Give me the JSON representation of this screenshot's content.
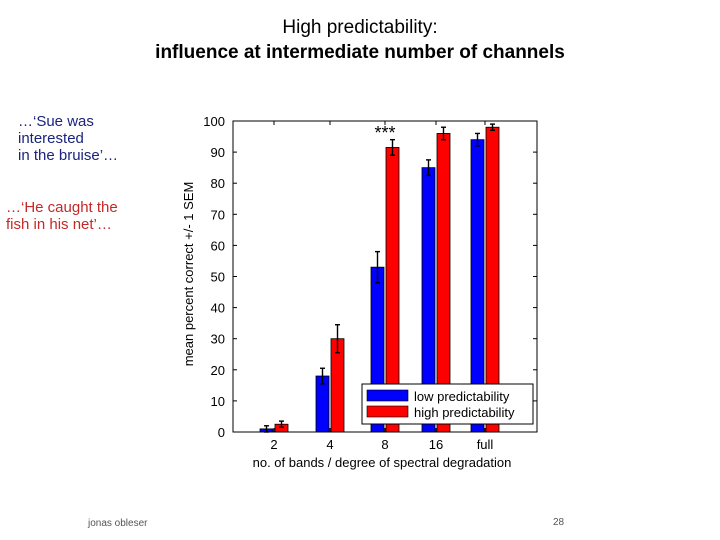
{
  "slide": {
    "title_line1": "High predictability:",
    "title_line2": "influence at intermediate number of channels",
    "quote_low": "…‘Sue was\ninterested\nin the bruise’…",
    "quote_high": "…‘He caught the\nfish in his net’…",
    "author": "jonas obleser",
    "page_number": "28"
  },
  "chart_data": {
    "type": "bar",
    "categories": [
      "2",
      "4",
      "8",
      "16",
      "full"
    ],
    "xlabel": "no. of bands / degree of spectral degradation",
    "ylabel": "mean percent correct +/- 1 SEM",
    "ylim": [
      0,
      100
    ],
    "yticks": [
      0,
      10,
      20,
      30,
      40,
      50,
      60,
      70,
      80,
      90,
      100
    ],
    "grid": false,
    "legend_position": "bottom-right",
    "series": [
      {
        "name": "low predictability",
        "color": "#0000ff",
        "values": [
          1,
          18,
          53,
          85,
          94
        ],
        "errors": [
          1,
          2.5,
          5,
          2.5,
          2
        ]
      },
      {
        "name": "high predictability",
        "color": "#ff0000",
        "values": [
          2.5,
          30,
          91.5,
          96,
          98
        ],
        "errors": [
          1,
          4.5,
          2.5,
          2,
          1
        ]
      }
    ],
    "annotation": {
      "text": "***",
      "category": "8"
    }
  }
}
